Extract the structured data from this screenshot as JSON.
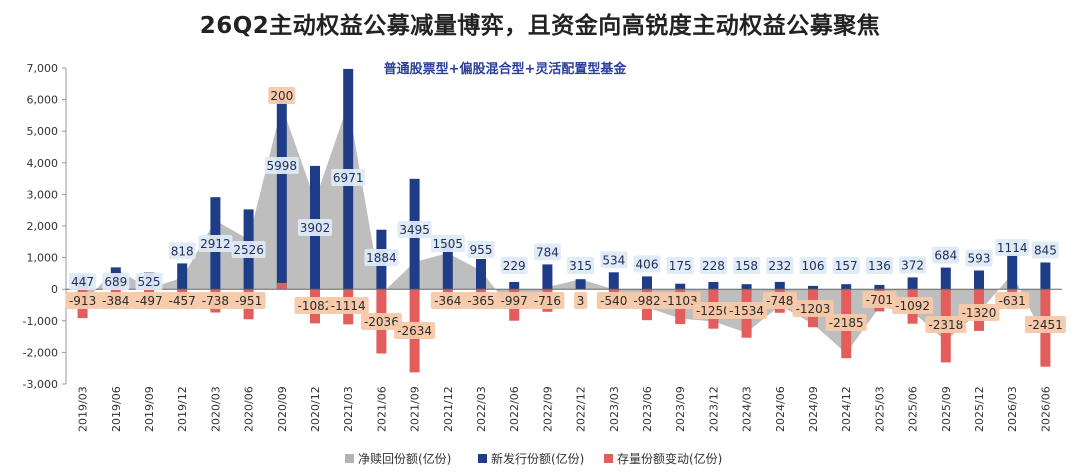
{
  "title": "26Q2主动权益公募减量博弈，且资金向高锐度主动权益公募聚焦",
  "chart_data": {
    "type": "bar",
    "subtitle": "普通股票型+偏股混合型+灵活配置型基金",
    "categories": [
      "2019/03",
      "2019/06",
      "2019/09",
      "2019/12",
      "2020/03",
      "2020/06",
      "2020/09",
      "2020/12",
      "2021/03",
      "2021/06",
      "2021/09",
      "2021/12",
      "2022/03",
      "2022/06",
      "2022/09",
      "2022/12",
      "2023/03",
      "2023/06",
      "2023/09",
      "2023/12",
      "2024/03",
      "2024/06",
      "2024/09",
      "2024/12",
      "2025/03",
      "2025/06",
      "2025/09",
      "2025/12",
      "2026/03",
      "2026/06"
    ],
    "ylim": [
      -3000,
      7000
    ],
    "yticks": [
      -3000,
      -2000,
      -1000,
      0,
      1000,
      2000,
      3000,
      4000,
      5000,
      6000,
      7000
    ],
    "ytick_labels": [
      "-3,000",
      "-2,000",
      "-1,000",
      "0",
      "1,000",
      "2,000",
      "3,000",
      "4,000",
      "5,000",
      "6,000",
      "7,000"
    ],
    "grid": false,
    "legend_position": "bottom",
    "series": [
      {
        "name": "净赎回份额(亿份)",
        "type": "area",
        "color": "#b3b3b3",
        "values": [
          -450,
          650,
          20,
          361,
          2174,
          1575,
          5798,
          2820,
          5857,
          -152,
          861,
          1141,
          590,
          -768,
          68,
          312,
          -6,
          -576,
          -928,
          -1022,
          -1376,
          -516,
          -1097,
          -2028,
          -565,
          -720,
          -1634,
          -727,
          483,
          -1606
        ]
      },
      {
        "name": "新发行份额(亿份)",
        "type": "bar",
        "color": "#1f3c88",
        "values": [
          447,
          689,
          525,
          818,
          2912,
          2526,
          5998,
          3902,
          6971,
          1884,
          3495,
          1505,
          955,
          229,
          784,
          315,
          534,
          406,
          175,
          228,
          158,
          232,
          106,
          157,
          136,
          372,
          684,
          593,
          1114,
          845
        ],
        "labels": [
          "447",
          "689",
          "525",
          "818",
          "2912",
          "2526",
          "5998",
          "3902",
          "6971",
          "1884",
          "3495",
          "1505",
          "955",
          "229",
          "784",
          "315",
          "534",
          "406",
          "175",
          "228",
          "158",
          "232",
          "106",
          "157",
          "136",
          "372",
          "684",
          "593",
          "1114",
          "845"
        ]
      },
      {
        "name": "存量份额变动(亿份)",
        "type": "bar",
        "color": "#e35d5d",
        "values": [
          -913,
          -384,
          -497,
          -457,
          -738,
          -951,
          200,
          -1082,
          -1114,
          -2036,
          -2634,
          -364,
          -365,
          -997,
          -716,
          3,
          -540,
          -982,
          -1103,
          -1250,
          -1534,
          -748,
          -1203,
          -2185,
          -701,
          -1092,
          -2318,
          -1320,
          -631,
          -2451
        ],
        "labels": [
          "-913",
          "-384",
          "-497",
          "-457",
          "-738",
          "-951",
          "200",
          "-1082",
          "-1114",
          "-2036",
          "-2634",
          "-364",
          "-365",
          "-997",
          "-716",
          "3",
          "-540",
          "-982",
          "-1103",
          "-1250",
          "-1534",
          "-748",
          "-1203",
          "-2185",
          "-701",
          "-1092",
          "-2318",
          "-1320",
          "-631",
          "-2451"
        ]
      }
    ]
  }
}
